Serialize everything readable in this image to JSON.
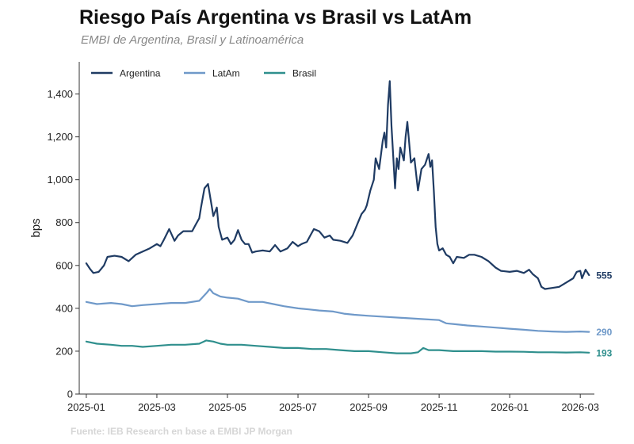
{
  "title": "Riesgo País Argentina vs Brasil vs LatAm",
  "subtitle": "EMBI de Argentina, Brasil y Latinoamérica",
  "source": "Fuente: IEB Research en base a EMBI JP Morgan",
  "chart_data": {
    "type": "line",
    "title": "Riesgo País Argentina vs Brasil vs LatAm",
    "subtitle": "EMBI de Argentina, Brasil y Latinoamérica",
    "xlabel": "",
    "ylabel": "bps",
    "ylim": [
      0,
      1550
    ],
    "xlim": [
      -0.2,
      14.4
    ],
    "x_unit": "months since 2025-01-01",
    "yticks": [
      0,
      200,
      400,
      600,
      800,
      1000,
      1200,
      1400
    ],
    "ytick_labels": [
      "0",
      "200",
      "400",
      "600",
      "800",
      "1,000",
      "1,200",
      "1,400"
    ],
    "xticks": [
      0,
      2,
      4,
      6,
      8,
      10,
      12,
      14
    ],
    "xtick_labels": [
      "2025-01",
      "2025-03",
      "2025-05",
      "2025-07",
      "2025-09",
      "2025-11",
      "2026-01",
      "2026-03"
    ],
    "grid": false,
    "legend_position": "top-left",
    "series": [
      {
        "name": "Argentina",
        "color": "#1f3b63",
        "end_label": "555",
        "points": [
          [
            0.0,
            610
          ],
          [
            0.1,
            585
          ],
          [
            0.2,
            565
          ],
          [
            0.35,
            570
          ],
          [
            0.5,
            600
          ],
          [
            0.6,
            640
          ],
          [
            0.8,
            645
          ],
          [
            1.0,
            640
          ],
          [
            1.2,
            620
          ],
          [
            1.4,
            650
          ],
          [
            1.6,
            665
          ],
          [
            1.8,
            680
          ],
          [
            2.0,
            700
          ],
          [
            2.1,
            690
          ],
          [
            2.2,
            720
          ],
          [
            2.35,
            770
          ],
          [
            2.5,
            715
          ],
          [
            2.6,
            740
          ],
          [
            2.75,
            760
          ],
          [
            3.0,
            760
          ],
          [
            3.1,
            790
          ],
          [
            3.2,
            820
          ],
          [
            3.25,
            870
          ],
          [
            3.35,
            960
          ],
          [
            3.45,
            980
          ],
          [
            3.55,
            880
          ],
          [
            3.6,
            830
          ],
          [
            3.7,
            870
          ],
          [
            3.75,
            780
          ],
          [
            3.85,
            720
          ],
          [
            4.0,
            730
          ],
          [
            4.1,
            700
          ],
          [
            4.2,
            720
          ],
          [
            4.3,
            765
          ],
          [
            4.4,
            720
          ],
          [
            4.5,
            700
          ],
          [
            4.6,
            700
          ],
          [
            4.7,
            660
          ],
          [
            4.8,
            665
          ],
          [
            5.0,
            670
          ],
          [
            5.2,
            665
          ],
          [
            5.35,
            695
          ],
          [
            5.5,
            665
          ],
          [
            5.7,
            680
          ],
          [
            5.85,
            710
          ],
          [
            6.0,
            690
          ],
          [
            6.1,
            700
          ],
          [
            6.25,
            710
          ],
          [
            6.35,
            740
          ],
          [
            6.45,
            770
          ],
          [
            6.6,
            760
          ],
          [
            6.75,
            730
          ],
          [
            6.9,
            740
          ],
          [
            7.0,
            720
          ],
          [
            7.2,
            715
          ],
          [
            7.4,
            705
          ],
          [
            7.55,
            740
          ],
          [
            7.7,
            800
          ],
          [
            7.8,
            840
          ],
          [
            7.9,
            860
          ],
          [
            7.95,
            880
          ],
          [
            8.05,
            950
          ],
          [
            8.15,
            1000
          ],
          [
            8.2,
            1100
          ],
          [
            8.3,
            1050
          ],
          [
            8.4,
            1180
          ],
          [
            8.45,
            1220
          ],
          [
            8.5,
            1150
          ],
          [
            8.55,
            1350
          ],
          [
            8.6,
            1460
          ],
          [
            8.65,
            1250
          ],
          [
            8.75,
            960
          ],
          [
            8.8,
            1100
          ],
          [
            8.85,
            1050
          ],
          [
            8.9,
            1150
          ],
          [
            9.0,
            1090
          ],
          [
            9.05,
            1200
          ],
          [
            9.1,
            1270
          ],
          [
            9.2,
            1080
          ],
          [
            9.3,
            1100
          ],
          [
            9.4,
            950
          ],
          [
            9.5,
            1050
          ],
          [
            9.6,
            1070
          ],
          [
            9.7,
            1120
          ],
          [
            9.75,
            1060
          ],
          [
            9.8,
            1090
          ],
          [
            9.85,
            950
          ],
          [
            9.9,
            780
          ],
          [
            9.95,
            700
          ],
          [
            10.0,
            670
          ],
          [
            10.1,
            680
          ],
          [
            10.2,
            650
          ],
          [
            10.3,
            640
          ],
          [
            10.4,
            610
          ],
          [
            10.5,
            640
          ],
          [
            10.7,
            635
          ],
          [
            10.85,
            650
          ],
          [
            11.0,
            650
          ],
          [
            11.2,
            640
          ],
          [
            11.4,
            620
          ],
          [
            11.6,
            590
          ],
          [
            11.75,
            575
          ],
          [
            12.0,
            570
          ],
          [
            12.2,
            575
          ],
          [
            12.4,
            565
          ],
          [
            12.55,
            580
          ],
          [
            12.65,
            560
          ],
          [
            12.8,
            540
          ],
          [
            12.9,
            500
          ],
          [
            13.0,
            490
          ],
          [
            13.2,
            495
          ],
          [
            13.4,
            500
          ],
          [
            13.6,
            520
          ],
          [
            13.8,
            540
          ],
          [
            13.9,
            570
          ],
          [
            14.0,
            575
          ],
          [
            14.05,
            540
          ],
          [
            14.15,
            580
          ],
          [
            14.25,
            555
          ]
        ]
      },
      {
        "name": "LatAm",
        "color": "#6f99c9",
        "end_label": "290",
        "points": [
          [
            0.0,
            430
          ],
          [
            0.3,
            420
          ],
          [
            0.7,
            425
          ],
          [
            1.0,
            420
          ],
          [
            1.3,
            410
          ],
          [
            1.6,
            415
          ],
          [
            2.0,
            420
          ],
          [
            2.4,
            425
          ],
          [
            2.8,
            425
          ],
          [
            3.2,
            435
          ],
          [
            3.4,
            470
          ],
          [
            3.5,
            490
          ],
          [
            3.6,
            470
          ],
          [
            3.8,
            455
          ],
          [
            4.0,
            450
          ],
          [
            4.3,
            445
          ],
          [
            4.6,
            430
          ],
          [
            5.0,
            430
          ],
          [
            5.3,
            420
          ],
          [
            5.6,
            410
          ],
          [
            6.0,
            400
          ],
          [
            6.3,
            395
          ],
          [
            6.6,
            390
          ],
          [
            7.0,
            385
          ],
          [
            7.3,
            375
          ],
          [
            7.6,
            370
          ],
          [
            8.0,
            365
          ],
          [
            8.5,
            360
          ],
          [
            9.0,
            355
          ],
          [
            9.5,
            350
          ],
          [
            10.0,
            345
          ],
          [
            10.2,
            330
          ],
          [
            10.5,
            325
          ],
          [
            10.8,
            320
          ],
          [
            11.2,
            315
          ],
          [
            11.6,
            310
          ],
          [
            12.0,
            305
          ],
          [
            12.4,
            300
          ],
          [
            12.8,
            295
          ],
          [
            13.2,
            292
          ],
          [
            13.6,
            290
          ],
          [
            14.0,
            292
          ],
          [
            14.25,
            290
          ]
        ]
      },
      {
        "name": "Brasil",
        "color": "#2f8f8d",
        "end_label": "193",
        "points": [
          [
            0.0,
            245
          ],
          [
            0.3,
            235
          ],
          [
            0.7,
            230
          ],
          [
            1.0,
            225
          ],
          [
            1.3,
            225
          ],
          [
            1.6,
            220
          ],
          [
            2.0,
            225
          ],
          [
            2.4,
            230
          ],
          [
            2.8,
            230
          ],
          [
            3.2,
            235
          ],
          [
            3.4,
            250
          ],
          [
            3.6,
            245
          ],
          [
            3.8,
            235
          ],
          [
            4.0,
            230
          ],
          [
            4.4,
            230
          ],
          [
            4.8,
            225
          ],
          [
            5.2,
            220
          ],
          [
            5.6,
            215
          ],
          [
            6.0,
            215
          ],
          [
            6.4,
            210
          ],
          [
            6.8,
            210
          ],
          [
            7.2,
            205
          ],
          [
            7.6,
            200
          ],
          [
            8.0,
            200
          ],
          [
            8.4,
            195
          ],
          [
            8.8,
            190
          ],
          [
            9.2,
            190
          ],
          [
            9.4,
            195
          ],
          [
            9.55,
            215
          ],
          [
            9.7,
            205
          ],
          [
            10.0,
            205
          ],
          [
            10.4,
            200
          ],
          [
            10.8,
            200
          ],
          [
            11.2,
            200
          ],
          [
            11.6,
            198
          ],
          [
            12.0,
            198
          ],
          [
            12.4,
            197
          ],
          [
            12.8,
            195
          ],
          [
            13.2,
            195
          ],
          [
            13.6,
            194
          ],
          [
            14.0,
            195
          ],
          [
            14.25,
            193
          ]
        ]
      }
    ]
  }
}
